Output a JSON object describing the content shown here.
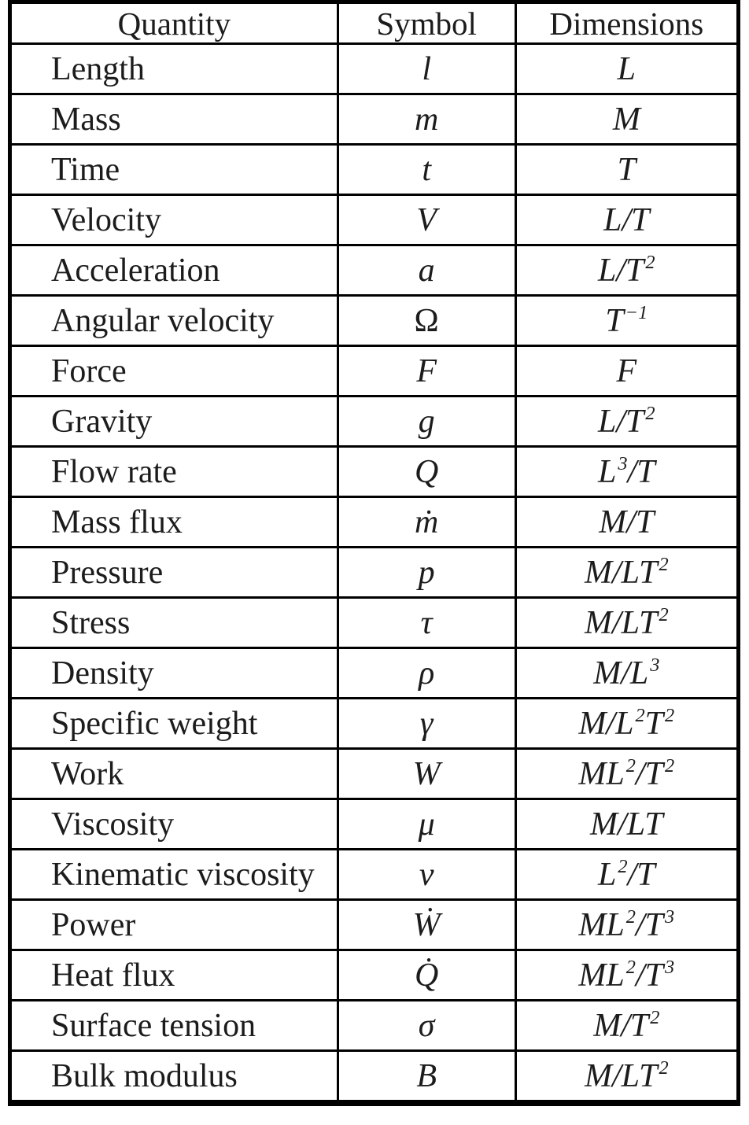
{
  "table": {
    "headers": [
      {
        "label": "Quantity"
      },
      {
        "label": "Symbol"
      },
      {
        "label": "Dimensions"
      }
    ],
    "rows": [
      {
        "quantity": "Length",
        "symbol": "l",
        "dimensions": "L"
      },
      {
        "quantity": "Mass",
        "symbol": "m",
        "dimensions": "M"
      },
      {
        "quantity": "Time",
        "symbol": "t",
        "dimensions": "T"
      },
      {
        "quantity": "Velocity",
        "symbol": "V",
        "dimensions": "L/T"
      },
      {
        "quantity": "Acceleration",
        "symbol": "a",
        "dimensions": "L/T^2"
      },
      {
        "quantity": "Angular velocity",
        "symbol": "Ω",
        "dimensions": "T^-1",
        "symbol_upright": true
      },
      {
        "quantity": "Force",
        "symbol": "F",
        "dimensions": "F"
      },
      {
        "quantity": "Gravity",
        "symbol": "g",
        "dimensions": "L/T^2"
      },
      {
        "quantity": "Flow rate",
        "symbol": "Q",
        "dimensions": "L^3/T"
      },
      {
        "quantity": "Mass flux",
        "symbol": "ṁ",
        "dimensions": "M/T"
      },
      {
        "quantity": "Pressure",
        "symbol": "p",
        "dimensions": "M/LT^2"
      },
      {
        "quantity": "Stress",
        "symbol": "τ",
        "dimensions": "M/LT^2"
      },
      {
        "quantity": "Density",
        "symbol": "ρ",
        "dimensions": "M/L^3"
      },
      {
        "quantity": "Specific weight",
        "symbol": "γ",
        "dimensions": "M/L^2T^2"
      },
      {
        "quantity": "Work",
        "symbol": "W",
        "dimensions": "ML^2/T^2"
      },
      {
        "quantity": "Viscosity",
        "symbol": "μ",
        "dimensions": "M/LT"
      },
      {
        "quantity": "Kinematic viscosity",
        "symbol": "ν",
        "dimensions": "L^2/T"
      },
      {
        "quantity": "Power",
        "symbol": "Ẇ",
        "dimensions": "ML^2/T^3"
      },
      {
        "quantity": "Heat flux",
        "symbol": "Q̇",
        "dimensions": "ML^2/T^3"
      },
      {
        "quantity": "Surface tension",
        "symbol": "σ",
        "dimensions": "M/T^2"
      },
      {
        "quantity": "Bulk modulus",
        "symbol": "B",
        "dimensions": "M/LT^2"
      }
    ]
  },
  "colors": {
    "border": "#000000",
    "text": "#1c1c1c",
    "background": "#ffffff"
  }
}
